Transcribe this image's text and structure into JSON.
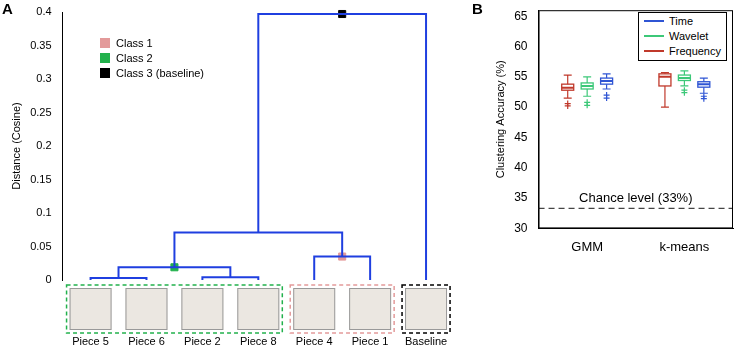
{
  "chart_data": [
    {
      "panel": "A",
      "type": "dendrogram",
      "ylabel": "Distance (Cosine)",
      "ylim": [
        0,
        0.4
      ],
      "yticks": [
        0,
        0.05,
        0.1,
        0.15,
        0.2,
        0.25,
        0.3,
        0.35,
        0.4
      ],
      "tick_labels": "y",
      "grid": false,
      "color": "#1f3fe0",
      "legend": "upper left",
      "leaves": [
        "Piece 5",
        "Piece 6",
        "Piece 2",
        "Piece 8",
        "Piece 4",
        "Piece 1",
        "Baseline"
      ],
      "merges": [
        {
          "children": [
            "Piece 5",
            "Piece 6"
          ],
          "height": 0.003
        },
        {
          "children": [
            "Piece 2",
            "Piece 8"
          ],
          "height": 0.004
        },
        {
          "children": [
            0,
            1
          ],
          "height": 0.019
        },
        {
          "children": [
            "Piece 4",
            "Piece 1"
          ],
          "height": 0.035
        },
        {
          "children": [
            2,
            3
          ],
          "height": 0.071
        },
        {
          "children": [
            4,
            "Baseline"
          ],
          "height": 0.397
        }
      ],
      "classes": [
        {
          "name": "Class 1",
          "color": "#e39a9a",
          "merge": 3,
          "members": [
            "Piece 4",
            "Piece 1"
          ]
        },
        {
          "name": "Class 2",
          "color": "#22b14c",
          "merge": 2,
          "members": [
            "Piece 5",
            "Piece 6",
            "Piece 2",
            "Piece 8"
          ]
        },
        {
          "name": "Class 3 (baseline)",
          "color": "#000000",
          "merge": 5,
          "members": [
            "Baseline"
          ]
        }
      ]
    },
    {
      "panel": "B",
      "type": "box",
      "ylabel": "Clustering Accuracy (%)",
      "categories": [
        "GMM",
        "k-means"
      ],
      "ylim": [
        30,
        66
      ],
      "yticks": [
        30,
        35,
        40,
        45,
        50,
        55,
        60,
        65
      ],
      "grid": false,
      "legend": "upper right",
      "series": [
        {
          "name": "Time",
          "color": "#2f55d4",
          "values": [
            {
              "min": 53,
              "q1": 53.8,
              "median": 54.3,
              "q3": 54.8,
              "max": 55.5,
              "outliers": [
                52,
                51.5
              ]
            },
            {
              "min": 52.3,
              "q1": 53.3,
              "median": 53.8,
              "q3": 54.2,
              "max": 54.8,
              "outliers": [
                51.8,
                51.4
              ]
            }
          ]
        },
        {
          "name": "Wavelet",
          "color": "#3cc878",
          "values": [
            {
              "min": 51.8,
              "q1": 53,
              "median": 53.5,
              "q3": 54,
              "max": 55,
              "outliers": [
                50.8,
                50.3
              ]
            },
            {
              "min": 53.5,
              "q1": 54.4,
              "median": 54.8,
              "q3": 55.3,
              "max": 56,
              "outliers": [
                52.8,
                52.4
              ]
            }
          ]
        },
        {
          "name": "Frequency",
          "color": "#c0392b",
          "values": [
            {
              "min": 51.5,
              "q1": 52.8,
              "median": 53.2,
              "q3": 53.8,
              "max": 55.3,
              "outliers": [
                50.6,
                50.2
              ]
            },
            {
              "min": 50,
              "q1": 53.5,
              "median": 55,
              "q3": 55.5,
              "max": 55.7,
              "outliers": []
            }
          ]
        }
      ],
      "annotations": [
        {
          "text": "Chance level (33%)",
          "y": 33.3,
          "line_style": "dashed"
        }
      ]
    }
  ]
}
